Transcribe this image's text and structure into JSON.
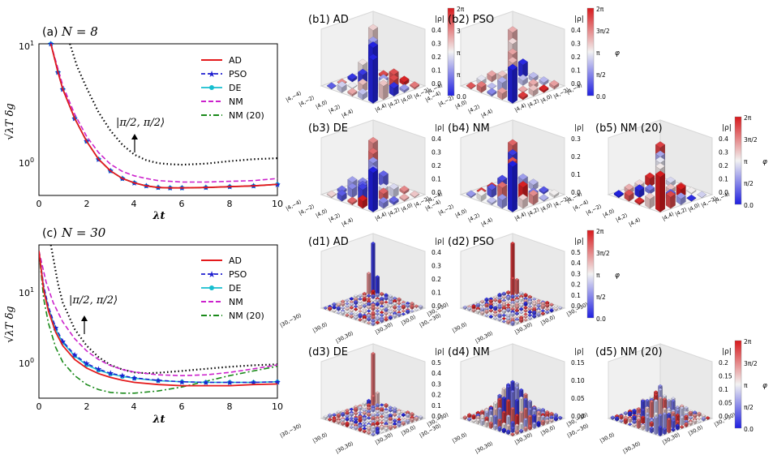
{
  "colors": {
    "AD": "#e41a1c",
    "PSO": "#1f1fd0",
    "DE": "#17becf",
    "NM": "#cc22cc",
    "NM20": "#1a8a1a",
    "pipi": "#000000",
    "phase_low": "#1f1fe0",
    "phase_mid": "#f2f2f2",
    "phase_high": "#d7191c"
  },
  "panel_a": {
    "tag": "(a)",
    "title_math": "N = 8",
    "ylabel": "√λT δg",
    "xlabel": "λt",
    "yticks": [
      "10",
      "10"
    ],
    "ytick_sups": [
      "1",
      "0"
    ],
    "xticks": [
      "0",
      "2",
      "4",
      "6",
      "8",
      "10"
    ],
    "annotation": "|π/2, π/2⟩"
  },
  "panel_c": {
    "tag": "(c)",
    "title_math": "N = 30",
    "ylabel": "√λT δg",
    "xlabel": "λt",
    "yticks": [
      "10",
      "10"
    ],
    "ytick_sups": [
      "1",
      "0"
    ],
    "xticks": [
      "0",
      "2",
      "4",
      "6",
      "8",
      "10"
    ],
    "annotation": "|π/2, π/2⟩"
  },
  "legend": [
    "AD",
    "PSO",
    "DE",
    "NM",
    "NM (20)"
  ],
  "bars": {
    "rho_label": "|ρ|",
    "phi_label": "φ",
    "cbar_ticks": [
      "2π",
      "3π/2",
      "π",
      "π/2",
      "0.0"
    ],
    "b1": {
      "title": "(b1)  AD",
      "zticks": [
        "0.4",
        "0.3",
        "0.2",
        "0.1",
        "0.0"
      ],
      "basis": [
        "|4,−4⟩",
        "|4,−2⟩",
        "|4,0⟩",
        "|4,2⟩",
        "|4,4⟩"
      ]
    },
    "b2": {
      "title": "(b2)  PSO",
      "zticks": [
        "0.4",
        "0.3",
        "0.2",
        "0.1",
        "0.0"
      ],
      "basis": [
        "|4,−4⟩",
        "|4,−2⟩",
        "|4,0⟩",
        "|4,2⟩",
        "|4,4⟩"
      ]
    },
    "b3": {
      "title": "(b3)  DE",
      "zticks": [
        "0.4",
        "0.3",
        "0.2",
        "0.1",
        "0.0"
      ],
      "basis": [
        "|4,−4⟩",
        "|4,−2⟩",
        "|4,0⟩",
        "|4,2⟩",
        "|4,4⟩"
      ]
    },
    "b4": {
      "title": "(b4)  NM",
      "zticks": [
        "0.3",
        "0.2",
        "0.1",
        "0.0"
      ],
      "basis": [
        "|4,−4⟩",
        "|4,−2⟩",
        "|4,0⟩",
        "|4,2⟩",
        "|4,4⟩"
      ]
    },
    "b5": {
      "title": "(b5)  NM (20)",
      "zticks": [
        "0.4",
        "0.3",
        "0.2",
        "0.1",
        "0.0"
      ],
      "basis": [
        "|4,−4⟩",
        "|4,−2⟩",
        "|4,0⟩",
        "|4,2⟩",
        "|4,4⟩"
      ]
    },
    "d1": {
      "title": "(d1)  AD",
      "zticks": [
        "0.4",
        "0.3",
        "0.2",
        "0.1",
        "0.0"
      ],
      "basis": [
        "|30,−30⟩",
        "|30,0⟩",
        "|30,30⟩"
      ]
    },
    "d2": {
      "title": "(d2)  PSO",
      "zticks": [
        "0.5",
        "0.4",
        "0.3",
        "0.2",
        "0.1",
        "0.0"
      ],
      "basis": [
        "|30,−30⟩",
        "|30,0⟩",
        "|30,30⟩"
      ]
    },
    "d3": {
      "title": "(d3)  DE",
      "zticks": [
        "0.5",
        "0.4",
        "0.3",
        "0.2",
        "0.1",
        "0.0"
      ],
      "basis": [
        "|30,−30⟩",
        "|30,0⟩",
        "|30,30⟩"
      ]
    },
    "d4": {
      "title": "(d4)  NM",
      "zticks": [
        "0.15",
        "0.10",
        "0.05",
        "0.00"
      ],
      "basis": [
        "|30,−30⟩",
        "|30,0⟩",
        "|30,30⟩"
      ]
    },
    "d5": {
      "title": "(d5)  NM (20)",
      "zticks": [
        "0.2",
        "0.15",
        "0.1",
        "0.05",
        "0.0"
      ],
      "basis": [
        "|30,−30⟩",
        "|30,0⟩",
        "|30,30⟩"
      ]
    }
  },
  "chart_data": [
    {
      "type": "line",
      "title": "(a) N = 8",
      "xlabel": "λt",
      "ylabel": "√λT δg",
      "yscale": "log",
      "xlim": [
        0,
        10
      ],
      "ylim": [
        0.55,
        10
      ],
      "series": [
        {
          "name": "AD",
          "x": [
            0.5,
            0.8,
            1,
            1.5,
            2,
            2.5,
            3,
            3.5,
            4,
            4.5,
            5,
            5.5,
            6,
            7,
            8,
            9,
            10
          ],
          "values": [
            10,
            5.8,
            4.2,
            2.4,
            1.55,
            1.1,
            0.88,
            0.76,
            0.7,
            0.66,
            0.64,
            0.635,
            0.635,
            0.64,
            0.65,
            0.66,
            0.68
          ]
        },
        {
          "name": "PSO",
          "x": [
            0.5,
            0.8,
            1,
            1.5,
            2,
            2.5,
            3,
            3.5,
            4,
            4.5,
            5,
            5.5,
            6,
            7,
            8,
            9,
            10
          ],
          "values": [
            10,
            5.8,
            4.2,
            2.4,
            1.55,
            1.1,
            0.88,
            0.76,
            0.7,
            0.66,
            0.64,
            0.635,
            0.635,
            0.64,
            0.65,
            0.66,
            0.68
          ]
        },
        {
          "name": "DE",
          "x": [
            0.5,
            0.8,
            1,
            1.5,
            2,
            2.5,
            3,
            3.5,
            4,
            4.5,
            5,
            5.5,
            6,
            7,
            8,
            9,
            10
          ],
          "values": [
            10,
            5.8,
            4.2,
            2.4,
            1.55,
            1.1,
            0.88,
            0.76,
            0.7,
            0.66,
            0.64,
            0.635,
            0.635,
            0.64,
            0.65,
            0.66,
            0.68
          ]
        },
        {
          "name": "NM",
          "x": [
            0.5,
            0.8,
            1,
            1.5,
            2,
            2.5,
            3,
            3.5,
            4,
            4.5,
            5,
            5.5,
            6,
            7,
            8,
            9,
            10
          ],
          "values": [
            10,
            6.2,
            4.5,
            2.6,
            1.7,
            1.25,
            1.0,
            0.87,
            0.8,
            0.76,
            0.73,
            0.72,
            0.71,
            0.71,
            0.72,
            0.73,
            0.76
          ]
        },
        {
          "name": "NM (20)",
          "x": [
            0.5,
            0.8,
            1,
            1.5,
            2,
            2.5,
            3,
            3.5,
            4,
            4.5,
            5,
            5.5,
            6,
            7,
            8,
            9,
            10
          ],
          "values": [
            10,
            5.8,
            4.2,
            2.4,
            1.55,
            1.1,
            0.88,
            0.76,
            0.7,
            0.66,
            0.64,
            0.635,
            0.635,
            0.64,
            0.65,
            0.66,
            0.68
          ]
        },
        {
          "name": "|π/2, π/2⟩",
          "x": [
            1.3,
            1.6,
            2,
            2.5,
            3,
            3.5,
            4,
            4.5,
            5,
            5.5,
            6,
            7,
            8,
            9,
            10
          ],
          "values": [
            10,
            6.5,
            4.3,
            2.7,
            1.9,
            1.45,
            1.2,
            1.08,
            1.02,
            1.0,
            0.99,
            1.01,
            1.06,
            1.1,
            1.12
          ]
        }
      ]
    },
    {
      "type": "line",
      "title": "(c) N = 30",
      "xlabel": "λt",
      "ylabel": "√λT δg",
      "yscale": "log",
      "xlim": [
        0,
        10
      ],
      "ylim": [
        0.33,
        55
      ],
      "series": [
        {
          "name": "AD",
          "x": [
            0,
            0.2,
            0.4,
            0.7,
            1,
            1.5,
            2,
            2.5,
            3,
            3.5,
            4,
            5,
            6,
            7,
            8,
            9,
            10
          ],
          "values": [
            45,
            12,
            6,
            3,
            1.9,
            1.2,
            0.9,
            0.75,
            0.66,
            0.6,
            0.56,
            0.52,
            0.5,
            0.5,
            0.5,
            0.52,
            0.53
          ]
        },
        {
          "name": "PSO",
          "x": [
            0,
            0.2,
            0.4,
            0.7,
            1,
            1.5,
            2,
            2.5,
            3,
            3.5,
            4,
            5,
            6,
            7,
            8,
            9,
            10
          ],
          "values": [
            45,
            14,
            7,
            3.5,
            2.2,
            1.4,
            1.05,
            0.87,
            0.76,
            0.7,
            0.65,
            0.6,
            0.57,
            0.56,
            0.56,
            0.56,
            0.57
          ]
        },
        {
          "name": "DE",
          "x": [
            0,
            0.2,
            0.4,
            0.7,
            1,
            1.5,
            2,
            2.5,
            3,
            3.5,
            4,
            5,
            6,
            7,
            8,
            9,
            10
          ],
          "values": [
            45,
            13,
            6.6,
            3.3,
            2.1,
            1.35,
            1.0,
            0.84,
            0.74,
            0.68,
            0.64,
            0.59,
            0.57,
            0.56,
            0.56,
            0.56,
            0.57
          ]
        },
        {
          "name": "NM",
          "x": [
            0,
            0.3,
            0.6,
            1,
            1.5,
            2,
            2.5,
            3,
            3.5,
            4,
            5,
            6,
            7,
            8,
            9,
            10
          ],
          "values": [
            45,
            16,
            8,
            4.2,
            2.4,
            1.6,
            1.2,
            0.98,
            0.86,
            0.79,
            0.72,
            0.7,
            0.72,
            0.78,
            0.88,
            1.0
          ]
        },
        {
          "name": "NM (20)",
          "x": [
            0,
            0.2,
            0.4,
            0.7,
            1,
            1.5,
            2,
            2.5,
            3,
            3.5,
            4,
            5,
            6,
            7,
            8,
            9,
            10
          ],
          "values": [
            45,
            9,
            4,
            1.8,
            1.1,
            0.7,
            0.52,
            0.44,
            0.4,
            0.39,
            0.39,
            0.42,
            0.48,
            0.58,
            0.7,
            0.82,
            0.96
          ]
        },
        {
          "name": "|π/2, π/2⟩",
          "x": [
            0.5,
            0.8,
            1,
            1.5,
            2,
            2.5,
            3,
            3.5,
            4,
            4.5,
            5,
            6,
            7,
            8,
            9,
            10
          ],
          "values": [
            55,
            15,
            8,
            3.3,
            1.9,
            1.3,
            1.0,
            0.86,
            0.78,
            0.76,
            0.77,
            0.82,
            0.88,
            0.94,
            0.99,
            1.02
          ]
        }
      ]
    }
  ]
}
